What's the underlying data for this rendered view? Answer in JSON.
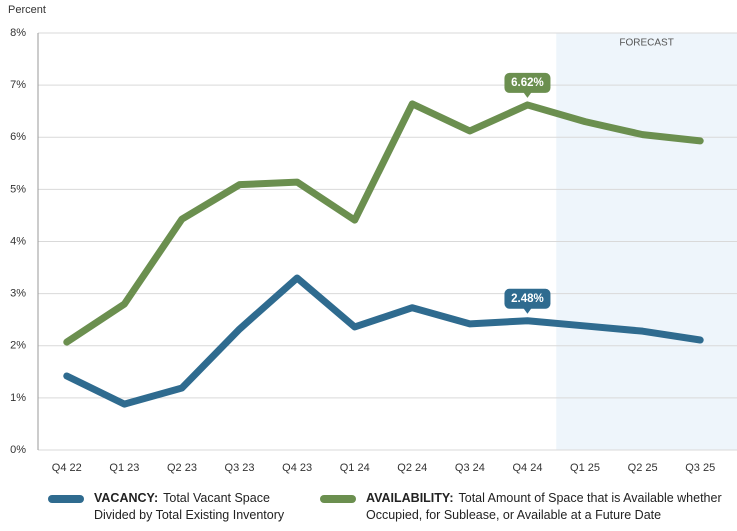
{
  "chart_data": {
    "type": "line",
    "y_label": "Percent",
    "categories": [
      "Q4 22",
      "Q1 23",
      "Q2 23",
      "Q3 23",
      "Q4 23",
      "Q1 24",
      "Q2 24",
      "Q3 24",
      "Q4 24",
      "Q1 25",
      "Q2 25",
      "Q3 25"
    ],
    "series": [
      {
        "name": "VACANCY:",
        "description": "Total Vacant Space Divided by Total Existing Inventory",
        "color": "#2f6b8f",
        "values": [
          1.42,
          0.88,
          1.19,
          2.32,
          3.3,
          2.36,
          2.73,
          2.42,
          2.48,
          2.38,
          2.28,
          2.11
        ],
        "value_labels": [
          null,
          null,
          null,
          null,
          null,
          null,
          null,
          null,
          "2.48%",
          null,
          null,
          null
        ]
      },
      {
        "name": "AVAILABILITY:",
        "description": "Total Amount of Space that is Available whether Occupied, for Sublease, or Available at a Future Date",
        "color": "#6b8f4f",
        "values": [
          2.07,
          2.8,
          4.43,
          5.09,
          5.14,
          4.41,
          6.64,
          6.12,
          6.62,
          6.3,
          6.05,
          5.93
        ],
        "value_labels": [
          null,
          null,
          null,
          null,
          null,
          null,
          null,
          null,
          "6.62%",
          null,
          null,
          null
        ]
      }
    ],
    "forecast": {
      "label": "FORECAST",
      "from": "Q1 25"
    },
    "ylim": [
      0,
      8
    ],
    "yticks": [
      {
        "value": 0,
        "label": "0%"
      },
      {
        "value": 1,
        "label": "1%"
      },
      {
        "value": 2,
        "label": "2%"
      },
      {
        "value": 3,
        "label": "3%"
      },
      {
        "value": 4,
        "label": "4%"
      },
      {
        "value": 5,
        "label": "5%"
      },
      {
        "value": 6,
        "label": "6%"
      },
      {
        "value": 7,
        "label": "7%"
      },
      {
        "value": 8,
        "label": "8%"
      }
    ],
    "grid": true
  }
}
